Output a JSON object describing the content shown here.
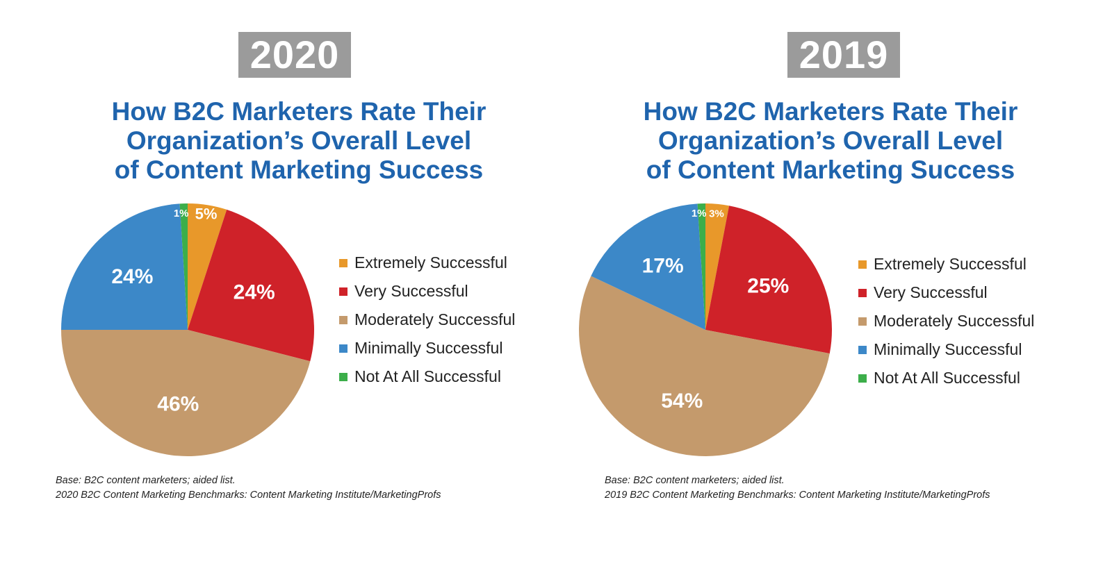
{
  "categories": [
    "Extremely Successful",
    "Very Successful",
    "Moderately Successful",
    "Minimally Successful",
    "Not At All Successful"
  ],
  "colors": [
    "#e8982a",
    "#cf2229",
    "#c49a6c",
    "#3c88c8",
    "#3cae4a"
  ],
  "chart_data": [
    {
      "type": "pie",
      "year": "2020",
      "title_lines": [
        "How B2C Marketers Rate Their",
        "Organization’s Overall Level",
        "of Content Marketing Success"
      ],
      "categories": [
        "Extremely Successful",
        "Very Successful",
        "Moderately Successful",
        "Minimally Successful",
        "Not At All Successful"
      ],
      "values": [
        5,
        24,
        46,
        24,
        1
      ],
      "labels": [
        "5%",
        "24%",
        "46%",
        "24%",
        "1%"
      ],
      "legend_placement": "right",
      "footnote": [
        "Base: B2C content marketers; aided list.",
        "2020 B2C Content Marketing Benchmarks: Content Marketing Institute/MarketingProfs"
      ]
    },
    {
      "type": "pie",
      "year": "2019",
      "title_lines": [
        "How B2C Marketers Rate Their",
        "Organization’s Overall Level",
        "of Content Marketing Success"
      ],
      "categories": [
        "Extremely Successful",
        "Very Successful",
        "Moderately Successful",
        "Minimally Successful",
        "Not At All Successful"
      ],
      "values": [
        3,
        25,
        54,
        17,
        1
      ],
      "labels": [
        "3%",
        "25%",
        "54%",
        "17%",
        "1%"
      ],
      "legend_placement": "right",
      "footnote": [
        "Base: B2C content marketers; aided list.",
        "2019 B2C Content Marketing Benchmarks: Content Marketing Institute/MarketingProfs"
      ]
    }
  ]
}
